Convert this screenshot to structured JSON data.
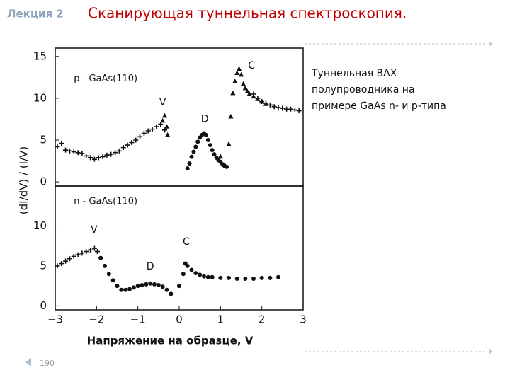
{
  "header": {
    "lecture": "Лекция 2",
    "title": "Сканирующая туннельная спектроскопия."
  },
  "note": [
    "Туннельная ВАХ",
    "полупроводника на",
    "примере GaAs n- и p-типа"
  ],
  "page_number": "190",
  "chart_data": [
    {
      "type": "scatter",
      "ylabel": "(dI/dV) / (I/V)",
      "xlim": [
        -3,
        3
      ],
      "ylim": [
        -0.5,
        16
      ],
      "yticks": [
        0,
        5,
        10,
        15
      ],
      "annotations": [
        {
          "text": "p - GaAs(110)",
          "x": -2.55,
          "y": 12.3
        },
        {
          "text": "V",
          "x": -0.4,
          "y": 9.5
        },
        {
          "text": "D",
          "x": 0.62,
          "y": 7.5
        },
        {
          "text": "C",
          "x": 1.75,
          "y": 13.9
        }
      ],
      "series": [
        {
          "marker": "plus",
          "color": "#111111",
          "x": [
            -2.95,
            -2.85,
            -2.75,
            -2.65,
            -2.55,
            -2.45,
            -2.35,
            -2.25,
            -2.15,
            -2.05,
            -1.95,
            -1.85,
            -1.75,
            -1.65,
            -1.55,
            -1.45,
            -1.35,
            -1.25,
            -1.15,
            -1.05,
            -0.95,
            -0.85,
            -0.75,
            -0.65,
            -0.55,
            -0.45,
            -0.35
          ],
          "y": [
            4.2,
            4.6,
            3.8,
            3.7,
            3.6,
            3.5,
            3.4,
            3.1,
            2.9,
            2.7,
            2.9,
            3.0,
            3.2,
            3.3,
            3.5,
            3.7,
            4.1,
            4.4,
            4.7,
            5.0,
            5.4,
            5.8,
            6.1,
            6.3,
            6.6,
            6.9,
            6.2
          ]
        },
        {
          "marker": "triangle",
          "color": "#111111",
          "x": [
            -0.4,
            -0.35,
            -0.3,
            -0.28
          ],
          "y": [
            7.3,
            7.9,
            6.6,
            5.6
          ]
        },
        {
          "marker": "circle",
          "color": "#111111",
          "x": [
            0.2,
            0.25,
            0.3,
            0.35,
            0.4,
            0.45,
            0.5,
            0.55,
            0.6,
            0.65,
            0.7,
            0.75,
            0.8,
            0.85,
            0.9,
            0.95,
            1.0,
            1.05,
            1.1,
            1.15
          ],
          "y": [
            1.6,
            2.2,
            3.0,
            3.6,
            4.2,
            4.8,
            5.3,
            5.6,
            5.8,
            5.6,
            5.0,
            4.4,
            3.8,
            3.3,
            2.9,
            2.6,
            2.4,
            2.1,
            1.9,
            1.8
          ]
        },
        {
          "marker": "triangle",
          "color": "#111111",
          "x": [
            1.0,
            1.1,
            1.2,
            1.25,
            1.3,
            1.35,
            1.4,
            1.45,
            1.5,
            1.55,
            1.6,
            1.65,
            1.7,
            1.8,
            1.9,
            2.0,
            2.1
          ],
          "y": [
            3.0,
            2.0,
            4.5,
            7.8,
            10.6,
            12.0,
            13.0,
            13.5,
            12.8,
            11.7,
            11.2,
            10.8,
            10.5,
            10.2,
            9.9,
            9.6,
            9.3
          ]
        },
        {
          "marker": "plus",
          "color": "#111111",
          "x": [
            1.8,
            1.9,
            2.0,
            2.1,
            2.2,
            2.3,
            2.4,
            2.5,
            2.6,
            2.7,
            2.8,
            2.9
          ],
          "y": [
            10.5,
            10.0,
            9.6,
            9.4,
            9.2,
            9.0,
            8.9,
            8.8,
            8.7,
            8.7,
            8.6,
            8.5
          ]
        }
      ]
    },
    {
      "type": "scatter",
      "xlabel": "Напряжение на образце, V",
      "xlim": [
        -3,
        3
      ],
      "ylim": [
        -0.5,
        15
      ],
      "xticks": [
        {
          "value": -3,
          "label": "−3"
        },
        {
          "value": -2,
          "label": "−2"
        },
        {
          "value": -1,
          "label": "−1"
        },
        0,
        1,
        2,
        3
      ],
      "yticks": [
        0,
        5,
        10
      ],
      "annotations": [
        {
          "text": "n - GaAs(110)",
          "x": -2.55,
          "y": 13.05
        },
        {
          "text": "V",
          "x": -2.06,
          "y": 9.5
        },
        {
          "text": "D",
          "x": -0.7,
          "y": 4.9
        },
        {
          "text": "C",
          "x": 0.17,
          "y": 8.0
        }
      ],
      "series": [
        {
          "marker": "plus",
          "color": "#111111",
          "x": [
            -2.95,
            -2.85,
            -2.75,
            -2.65,
            -2.55,
            -2.45,
            -2.35,
            -2.25,
            -2.15,
            -2.05,
            -1.98
          ],
          "y": [
            5.0,
            5.3,
            5.6,
            5.9,
            6.2,
            6.4,
            6.6,
            6.8,
            7.0,
            7.2,
            6.8
          ]
        },
        {
          "marker": "circle",
          "color": "#111111",
          "x": [
            -1.9,
            -1.8,
            -1.7,
            -1.6,
            -1.5,
            -1.4,
            -1.3,
            -1.2,
            -1.1,
            -1.0,
            -0.9,
            -0.8,
            -0.7,
            -0.6,
            -0.5,
            -0.4,
            -0.3,
            -0.2
          ],
          "y": [
            6.0,
            5.0,
            4.0,
            3.2,
            2.5,
            2.0,
            2.0,
            2.1,
            2.3,
            2.5,
            2.6,
            2.7,
            2.8,
            2.7,
            2.6,
            2.4,
            2.0,
            1.5
          ]
        },
        {
          "marker": "circle",
          "color": "#111111",
          "x": [
            0.0,
            0.1,
            0.15,
            0.2,
            0.3,
            0.4,
            0.5,
            0.6,
            0.7,
            0.8,
            1.0,
            1.2,
            1.4,
            1.6,
            1.8,
            2.0,
            2.2,
            2.4
          ],
          "y": [
            2.5,
            4.0,
            5.3,
            5.0,
            4.5,
            4.1,
            3.9,
            3.7,
            3.6,
            3.6,
            3.5,
            3.5,
            3.4,
            3.4,
            3.4,
            3.5,
            3.5,
            3.6
          ]
        }
      ]
    }
  ]
}
